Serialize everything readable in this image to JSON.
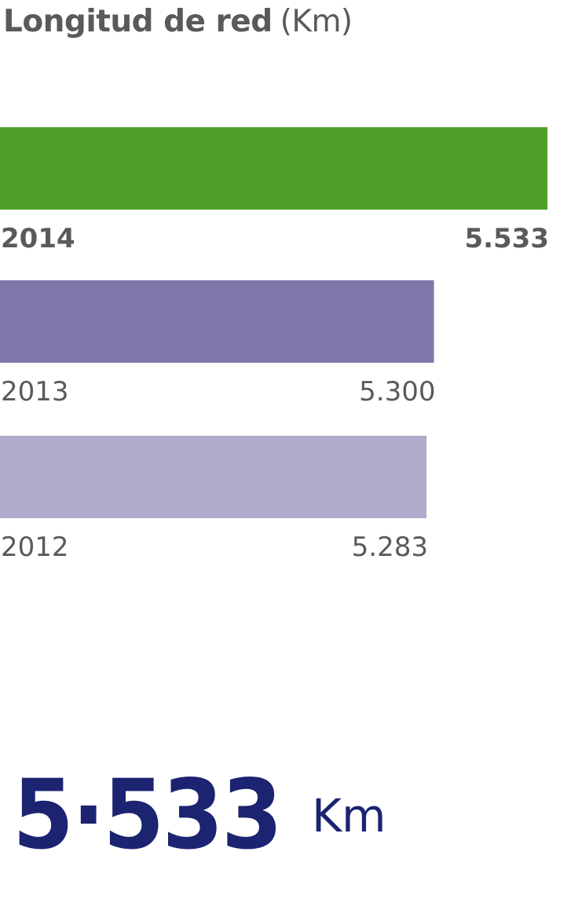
{
  "header": {
    "title": "Longitud de red",
    "unit": "(Km)"
  },
  "chart_data": {
    "type": "bar",
    "orientation": "horizontal",
    "title": "Longitud de red (Km)",
    "categories": [
      "2014",
      "2013",
      "2012"
    ],
    "values": [
      5533,
      5300,
      5283
    ],
    "value_labels": [
      "5.533",
      "5.300",
      "5.283"
    ],
    "colors": [
      "#4fa02a",
      "#7f77a9",
      "#b0abcb"
    ],
    "highlight": "2014",
    "grid": false,
    "legend": "none"
  },
  "total": {
    "value": "5·533",
    "unit": "Km"
  },
  "colors": {
    "label": "#5a5a5a",
    "total": "#1c2370"
  }
}
